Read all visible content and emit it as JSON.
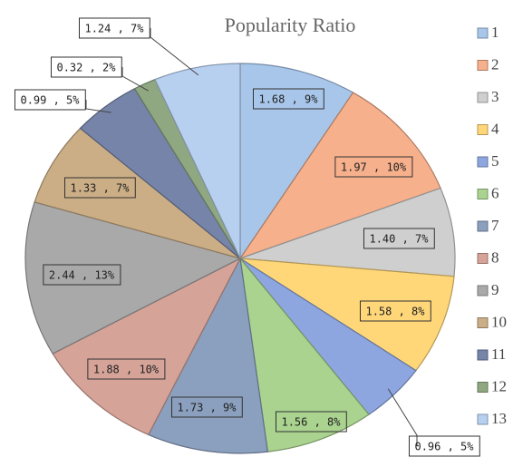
{
  "chart_data": {
    "type": "pie",
    "title": "Popularity Ratio",
    "categories": [
      "1",
      "2",
      "3",
      "4",
      "5",
      "6",
      "7",
      "8",
      "9",
      "10",
      "11",
      "12",
      "13"
    ],
    "values": [
      1.68,
      1.97,
      1.4,
      1.58,
      0.96,
      1.56,
      1.73,
      1.88,
      2.44,
      1.33,
      0.99,
      0.32,
      1.24
    ],
    "value_labels": [
      "1.68 , 9%",
      "1.97 , 10%",
      "1.40 , 7%",
      "1.58 , 8%",
      "0.96 , 5%",
      "1.56 , 8%",
      "1.73 , 9%",
      "1.88 , 10%",
      "2.44 , 13%",
      "1.33 , 7%",
      "0.99 , 5%",
      "0.32 , 2%",
      "1.24 , 7%"
    ],
    "colors": [
      "#a8c6ea",
      "#f6b08c",
      "#cfcfcf",
      "#ffd779",
      "#8ea6e0",
      "#a9d38f",
      "#8b9fbe",
      "#d5a398",
      "#a9a9a9",
      "#cbae86",
      "#7584a8",
      "#8fa882",
      "#b8d0f0"
    ],
    "legend": "right"
  }
}
